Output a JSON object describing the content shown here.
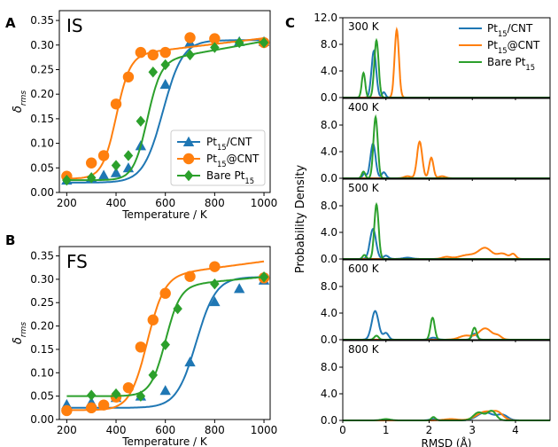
{
  "colors": {
    "Pt15/CNT": "#1f77b4",
    "Pt15@CNT": "#ff7f0e",
    "Bare Pt15": "#2ca02c"
  },
  "panel_labels": {
    "A": "A",
    "B": "B",
    "C": "C"
  },
  "chart_data": [
    {
      "id": "A",
      "type": "line",
      "inner_title": "IS",
      "xlabel": "Temperature / K",
      "ylabel": "δrms",
      "xlim": [
        170,
        1025
      ],
      "ylim": [
        0.0,
        0.37
      ],
      "xticks": [
        200,
        400,
        600,
        800,
        1000
      ],
      "yticks": [
        0.0,
        0.05,
        0.1,
        0.15,
        0.2,
        0.25,
        0.3,
        0.35
      ],
      "legend_position": "center-right",
      "series": [
        {
          "name": "Pt15/CNT",
          "marker": "triangle",
          "points": [
            [
              200,
              0.025
            ],
            [
              300,
              0.03
            ],
            [
              350,
              0.035
            ],
            [
              400,
              0.04
            ],
            [
              450,
              0.05
            ],
            [
              500,
              0.095
            ],
            [
              600,
              0.22
            ],
            [
              700,
              0.305
            ],
            [
              900,
              0.307
            ],
            [
              1000,
              0.307
            ]
          ],
          "fit": {
            "base": 0.02,
            "amp": 0.29,
            "mid": 590,
            "w": 40,
            "slope": 0
          }
        },
        {
          "name": "Pt15@CNT",
          "marker": "circle",
          "points": [
            [
              200,
              0.033
            ],
            [
              300,
              0.06
            ],
            [
              350,
              0.075
            ],
            [
              400,
              0.18
            ],
            [
              450,
              0.235
            ],
            [
              500,
              0.285
            ],
            [
              550,
              0.28
            ],
            [
              600,
              0.285
            ],
            [
              700,
              0.315
            ],
            [
              800,
              0.313
            ],
            [
              1000,
              0.305
            ]
          ],
          "fit": {
            "base": 0.028,
            "amp": 0.25,
            "mid": 400,
            "w": 28,
            "slope": 6e-05
          }
        },
        {
          "name": "Bare Pt15",
          "marker": "diamond",
          "points": [
            [
              200,
              0.025
            ],
            [
              300,
              0.03
            ],
            [
              400,
              0.055
            ],
            [
              450,
              0.075
            ],
            [
              500,
              0.145
            ],
            [
              550,
              0.245
            ],
            [
              600,
              0.26
            ],
            [
              700,
              0.28
            ],
            [
              800,
              0.295
            ],
            [
              900,
              0.305
            ],
            [
              1000,
              0.305
            ]
          ],
          "fit": {
            "base": 0.025,
            "amp": 0.24,
            "mid": 525,
            "w": 28,
            "slope": 9e-05
          }
        }
      ]
    },
    {
      "id": "B",
      "type": "line",
      "inner_title": "FS",
      "xlabel": "Temperature / K",
      "ylabel": "δrms",
      "xlim": [
        170,
        1025
      ],
      "ylim": [
        0.0,
        0.37
      ],
      "xticks": [
        200,
        400,
        600,
        800,
        1000
      ],
      "yticks": [
        0.0,
        0.05,
        0.1,
        0.15,
        0.2,
        0.25,
        0.3,
        0.35
      ],
      "series": [
        {
          "name": "Pt15/CNT",
          "marker": "triangle",
          "points": [
            [
              200,
              0.032
            ],
            [
              300,
              0.037
            ],
            [
              400,
              0.047
            ],
            [
              500,
              0.05
            ],
            [
              600,
              0.062
            ],
            [
              700,
              0.123
            ],
            [
              800,
              0.252
            ],
            [
              900,
              0.28
            ],
            [
              1000,
              0.298
            ]
          ],
          "fit": {
            "base": 0.025,
            "amp": 0.28,
            "mid": 725,
            "w": 40,
            "slope": 0
          }
        },
        {
          "name": "Pt15@CNT",
          "marker": "circle",
          "points": [
            [
              200,
              0.019
            ],
            [
              300,
              0.025
            ],
            [
              350,
              0.031
            ],
            [
              400,
              0.048
            ],
            [
              450,
              0.068
            ],
            [
              500,
              0.155
            ],
            [
              550,
              0.213
            ],
            [
              600,
              0.27
            ],
            [
              700,
              0.306
            ],
            [
              800,
              0.327
            ],
            [
              1000,
              0.303
            ]
          ],
          "fit": {
            "base": 0.02,
            "amp": 0.285,
            "mid": 525,
            "w": 35,
            "slope": 7e-05
          }
        },
        {
          "name": "Bare Pt15",
          "marker": "diamond",
          "points": [
            [
              300,
              0.052
            ],
            [
              400,
              0.055
            ],
            [
              500,
              0.05
            ],
            [
              550,
              0.095
            ],
            [
              600,
              0.16
            ],
            [
              650,
              0.237
            ],
            [
              800,
              0.29
            ],
            [
              1000,
              0.305
            ]
          ],
          "fit": {
            "base": 0.05,
            "amp": 0.235,
            "mid": 600,
            "w": 30,
            "slope": 5e-05
          }
        }
      ]
    },
    {
      "id": "C",
      "type": "line",
      "ylabel": "Probability Density",
      "xlabel": "RMSD (Å)",
      "xlim": [
        0,
        4.8
      ],
      "xticks": [
        0,
        1,
        2,
        3,
        4
      ],
      "legend_position": "top-right",
      "panels": [
        {
          "label": "300 K",
          "ylim": [
            0,
            12
          ],
          "yticks": [
            0.0,
            4.0,
            8.0,
            12.0
          ],
          "series": [
            {
              "name": "Pt15/CNT",
              "peaks": [
                [
                  0.72,
                  7.0,
                  0.055
                ],
                [
                  0.95,
                  0.8,
                  0.04
                ]
              ]
            },
            {
              "name": "Pt15@CNT",
              "peaks": [
                [
                  1.25,
                  10.2,
                  0.05
                ]
              ]
            },
            {
              "name": "Bare Pt15",
              "peaks": [
                [
                  0.48,
                  3.7,
                  0.04
                ],
                [
                  0.78,
                  8.6,
                  0.05
                ]
              ]
            }
          ]
        },
        {
          "label": "400 K",
          "ylim": [
            0,
            12
          ],
          "yticks": [
            0.0,
            4.0,
            8.0
          ],
          "series": [
            {
              "name": "Pt15/CNT",
              "peaks": [
                [
                  0.7,
                  5.2,
                  0.06
                ],
                [
                  0.95,
                  0.9,
                  0.05
                ],
                [
                  0.5,
                  0.7,
                  0.04
                ]
              ]
            },
            {
              "name": "Pt15@CNT",
              "peaks": [
                [
                  1.78,
                  5.5,
                  0.06
                ],
                [
                  2.05,
                  3.1,
                  0.05
                ],
                [
                  1.5,
                  0.3,
                  0.08
                ],
                [
                  2.3,
                  0.3,
                  0.08
                ]
              ]
            },
            {
              "name": "Bare Pt15",
              "peaks": [
                [
                  0.48,
                  1.0,
                  0.04
                ],
                [
                  0.76,
                  9.2,
                  0.05
                ]
              ]
            }
          ]
        },
        {
          "label": "500 K",
          "ylim": [
            0,
            12
          ],
          "yticks": [
            0.0,
            4.0,
            8.0
          ],
          "series": [
            {
              "name": "Pt15/CNT",
              "peaks": [
                [
                  0.7,
                  4.5,
                  0.07
                ],
                [
                  1.0,
                  0.5,
                  0.06
                ],
                [
                  1.5,
                  0.2,
                  0.1
                ]
              ]
            },
            {
              "name": "Pt15@CNT",
              "peaks": [
                [
                  2.9,
                  0.6,
                  0.2
                ],
                [
                  3.3,
                  1.6,
                  0.15
                ],
                [
                  3.7,
                  0.8,
                  0.12
                ],
                [
                  3.95,
                  0.7,
                  0.06
                ],
                [
                  2.4,
                  0.3,
                  0.1
                ]
              ]
            },
            {
              "name": "Bare Pt15",
              "peaks": [
                [
                  0.78,
                  8.2,
                  0.05
                ],
                [
                  0.5,
                  0.6,
                  0.04
                ]
              ]
            }
          ]
        },
        {
          "label": "600 K",
          "ylim": [
            0,
            12
          ],
          "yticks": [
            0.0,
            4.0,
            8.0
          ],
          "series": [
            {
              "name": "Pt15/CNT",
              "peaks": [
                [
                  0.75,
                  4.3,
                  0.08
                ],
                [
                  1.0,
                  1.0,
                  0.06
                ],
                [
                  2.1,
                  0.3,
                  0.08
                ],
                [
                  3.05,
                  0.9,
                  0.06
                ]
              ]
            },
            {
              "name": "Pt15@CNT",
              "peaks": [
                [
                  2.85,
                  0.6,
                  0.15
                ],
                [
                  3.3,
                  1.7,
                  0.15
                ],
                [
                  3.6,
                  0.5,
                  0.08
                ]
              ]
            },
            {
              "name": "Bare Pt15",
              "peaks": [
                [
                  0.78,
                  0.6,
                  0.05
                ],
                [
                  2.08,
                  3.3,
                  0.05
                ],
                [
                  3.05,
                  1.8,
                  0.05
                ]
              ]
            }
          ]
        },
        {
          "label": "800 K",
          "ylim": [
            0,
            12
          ],
          "yticks": [
            0.0,
            4.0,
            8.0
          ],
          "series": [
            {
              "name": "Pt15/CNT",
              "peaks": [
                [
                  3.3,
                  1.2,
                  0.18
                ],
                [
                  3.7,
                  0.8,
                  0.12
                ],
                [
                  2.1,
                  0.2,
                  0.08
                ]
              ]
            },
            {
              "name": "Pt15@CNT",
              "peaks": [
                [
                  3.3,
                  1.3,
                  0.2
                ],
                [
                  3.6,
                  0.9,
                  0.12
                ],
                [
                  2.5,
                  0.2,
                  0.15
                ]
              ]
            },
            {
              "name": "Bare Pt15",
              "peaks": [
                [
                  3.15,
                  1.2,
                  0.12
                ],
                [
                  3.45,
                  1.4,
                  0.1
                ],
                [
                  2.1,
                  0.5,
                  0.05
                ],
                [
                  1.0,
                  0.2,
                  0.1
                ]
              ]
            }
          ]
        }
      ]
    }
  ]
}
